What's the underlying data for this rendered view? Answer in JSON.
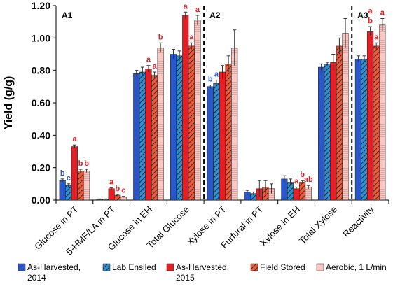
{
  "chart_data": {
    "type": "bar",
    "ylabel": "Yield (g/g)",
    "ylim": [
      0,
      1.2
    ],
    "yticks": [
      "0.00",
      "0.20",
      "0.40",
      "0.60",
      "0.80",
      "1.00",
      "1.20"
    ],
    "categories": [
      "Glucose in PT",
      "5-HMF/LA in PT",
      "Glucose in EH",
      "Total Glucose",
      "Xylose in PT",
      "Furfural in PT",
      "Xylose in EH",
      "Total Xylose",
      "Reactivity"
    ],
    "panels": [
      {
        "label": "A1",
        "after_category": null
      },
      {
        "label": "A2",
        "after_category": 3
      },
      {
        "label": "A3",
        "after_category": 7
      }
    ],
    "series": [
      {
        "name": "As-Harvested, 2014",
        "color": "#2a57c9",
        "pattern": "solid",
        "values": [
          0.12,
          0.005,
          0.78,
          0.9,
          0.7,
          0.05,
          0.13,
          0.82,
          0.87
        ],
        "errors": [
          0.01,
          0.002,
          0.02,
          0.03,
          0.01,
          0.01,
          0.02,
          0.02,
          0.02
        ]
      },
      {
        "name": "Lab Ensiled",
        "color": "#3aa3e0",
        "pattern": "diagonal",
        "values": [
          0.09,
          0.005,
          0.79,
          0.89,
          0.72,
          0.04,
          0.11,
          0.84,
          0.87
        ],
        "errors": [
          0.01,
          0.002,
          0.03,
          0.03,
          0.02,
          0.01,
          0.02,
          0.01,
          0.02
        ]
      },
      {
        "name": "As-Harvested, 2015",
        "color": "#e51f25",
        "pattern": "solid",
        "values": [
          0.33,
          0.07,
          0.81,
          1.14,
          0.79,
          0.07,
          0.07,
          0.85,
          1.04
        ],
        "errors": [
          0.01,
          0.005,
          0.02,
          0.02,
          0.04,
          0.05,
          0.01,
          0.05,
          0.03
        ]
      },
      {
        "name": "Field Stored",
        "color": "#e8856a",
        "pattern": "diagonal",
        "values": [
          0.18,
          0.03,
          0.77,
          0.95,
          0.84,
          0.08,
          0.11,
          0.95,
          0.95
        ],
        "errors": [
          0.01,
          0.005,
          0.02,
          0.02,
          0.05,
          0.04,
          0.01,
          0.05,
          0.02
        ]
      },
      {
        "name": "Aerobic, 1 L/min",
        "color": "#f4b6b0",
        "pattern": "grid",
        "values": [
          0.18,
          0.02,
          0.94,
          1.11,
          0.94,
          0.07,
          0.08,
          1.03,
          1.08
        ],
        "errors": [
          0.01,
          0.003,
          0.03,
          0.03,
          0.11,
          0.03,
          0.01,
          0.09,
          0.04
        ]
      }
    ],
    "annotations": [
      {
        "text": "b",
        "category": 0,
        "series": 0,
        "color": "#2a57c9"
      },
      {
        "text": "c",
        "category": 0,
        "series": 1,
        "color": "#2a57c9"
      },
      {
        "text": "a",
        "category": 0,
        "series": 2,
        "color": "#e51f25"
      },
      {
        "text": "b",
        "category": 0,
        "series": 3,
        "color": "#e51f25"
      },
      {
        "text": "b",
        "category": 0,
        "series": 4,
        "color": "#e51f25"
      },
      {
        "text": "a",
        "category": 1,
        "series": 2,
        "color": "#e51f25"
      },
      {
        "text": "b",
        "category": 1,
        "series": 3,
        "color": "#e51f25"
      },
      {
        "text": "c",
        "category": 1,
        "series": 4,
        "color": "#e51f25"
      },
      {
        "text": "a",
        "category": 2,
        "series": 3,
        "color": "#e51f25"
      },
      {
        "text": "a",
        "category": 2,
        "series": 2,
        "color": "#e51f25"
      },
      {
        "text": "b",
        "category": 2,
        "series": 4,
        "color": "#e51f25"
      },
      {
        "text": "a",
        "category": 3,
        "series": 2,
        "color": "#e51f25"
      },
      {
        "text": "a",
        "category": 3,
        "series": 3,
        "color": "#e51f25"
      },
      {
        "text": "a",
        "category": 3,
        "series": 4,
        "color": "#e51f25"
      },
      {
        "text": "b",
        "category": 4,
        "series": 0,
        "color": "#2a57c9"
      },
      {
        "text": "a",
        "category": 4,
        "series": 1,
        "color": "#2a57c9"
      },
      {
        "text": "a",
        "category": 6,
        "series": 2,
        "color": "#e51f25"
      },
      {
        "text": "b",
        "category": 6,
        "series": 3,
        "color": "#e51f25"
      },
      {
        "text": "ab",
        "category": 6,
        "series": 4,
        "color": "#e51f25"
      },
      {
        "text": "b",
        "category": 8,
        "series": 2,
        "color": "#e51f25"
      },
      {
        "text": "a",
        "category": 8,
        "series": 3,
        "color": "#e51f25"
      },
      {
        "text": "a",
        "category": 8,
        "series": 4,
        "color": "#e51f25"
      },
      {
        "text": "a",
        "category": 8,
        "series": 2,
        "color": "#e51f25",
        "stack": 1
      }
    ],
    "legend_position": "bottom",
    "grid": false
  }
}
